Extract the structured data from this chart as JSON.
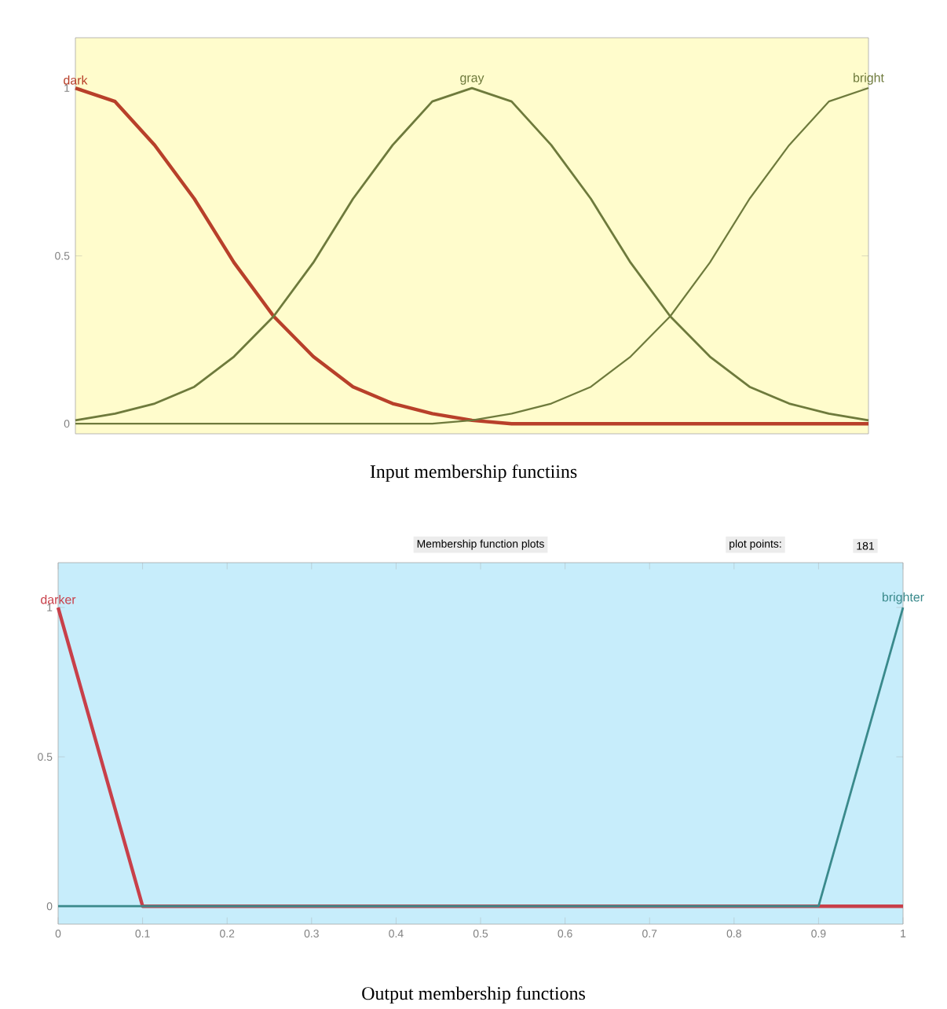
{
  "chart_data": [
    {
      "type": "line",
      "categories": [
        null,
        null,
        null,
        null,
        null,
        null,
        null,
        null,
        null,
        null,
        null,
        null,
        null,
        null,
        null,
        null,
        null,
        null,
        null,
        null,
        null
      ],
      "ylim": [
        -0.03,
        1.15
      ],
      "yticks": [
        0,
        0.5,
        1
      ],
      "tick_labels": "y",
      "series": [
        {
          "name": "dark",
          "color": "#b8402a",
          "values": [
            1,
            0.96,
            0.83,
            0.67,
            0.48,
            0.32,
            0.2,
            0.11,
            0.06,
            0.03,
            0.01,
            0,
            0,
            0,
            0,
            0,
            0,
            0,
            0,
            0,
            0
          ]
        },
        {
          "name": "gray",
          "color": "#6e7a3c",
          "values": [
            0.01,
            0.03,
            0.06,
            0.11,
            0.2,
            0.32,
            0.48,
            0.67,
            0.83,
            0.96,
            1,
            0.96,
            0.83,
            0.67,
            0.48,
            0.32,
            0.2,
            0.11,
            0.06,
            0.03,
            0.01
          ]
        },
        {
          "name": "bright",
          "color": "#6e7a3c",
          "values": [
            0,
            0,
            0,
            0,
            0,
            0,
            0,
            0,
            0,
            0,
            0.01,
            0.03,
            0.06,
            0.11,
            0.2,
            0.32,
            0.48,
            0.67,
            0.83,
            0.96,
            1
          ]
        }
      ],
      "annotations": [
        "Input membership functiins"
      ]
    },
    {
      "type": "line",
      "xlim": [
        0,
        1
      ],
      "xticks": [
        0,
        0.1,
        0.2,
        0.3,
        0.4,
        0.5,
        0.6,
        0.7,
        0.8,
        0.9,
        1
      ],
      "ylim": [
        -0.06,
        1.15
      ],
      "yticks": [
        0,
        0.5,
        1
      ],
      "series": [
        {
          "name": "darker",
          "color": "#c8404a",
          "x": [
            0,
            0.1,
            1
          ],
          "values": [
            1,
            0,
            0
          ]
        },
        {
          "name": "brighter",
          "color": "#3a8a8c",
          "x": [
            0,
            0.9,
            1
          ],
          "values": [
            0,
            0,
            1
          ]
        }
      ],
      "annotations": [
        "Membership function plots",
        "plot points:",
        "181",
        "Output membership functions"
      ]
    }
  ]
}
